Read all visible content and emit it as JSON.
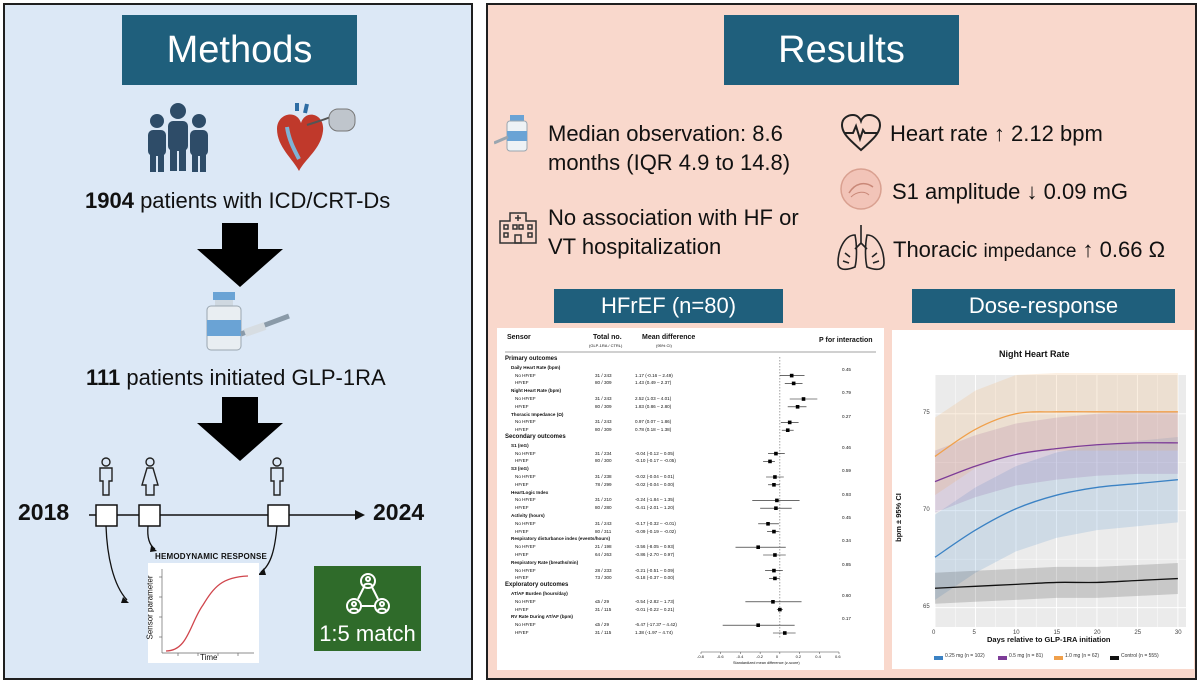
{
  "methods": {
    "title": "Methods",
    "patients_count": "1904",
    "patients_text": " patients with ICD/CRT-Ds",
    "initiated_count": "111",
    "initiated_text": " patients initiated GLP-1RA",
    "timeline_start": "2018",
    "timeline_end": "2024",
    "hemodynamic_label": "HEMODYNAMIC RESPONSE",
    "sensor_axis_label": "Sensor parameter",
    "time_axis_label": "Time",
    "match_label": "1:5 match",
    "colors": {
      "title_bg": "#1f5f7c",
      "match_bg": "#2f6b2a",
      "curve": "#d0454c"
    }
  },
  "results": {
    "title": "Results",
    "observation_line1": "Median observation: 8.6",
    "observation_line2": "months (IQR 4.9 to 14.8)",
    "hosp_line1": "No association with HF or",
    "hosp_line2": "VT hospitalization",
    "heart_rate": "Heart rate ↑ 2.12 bpm",
    "s1": "S1 amplitude ↓ 0.09 mG",
    "thoracic_label": "Thoracic ",
    "thoracic_small": "impedance",
    "thoracic_value": " ↑ 0.66 Ω",
    "hfref_header": "HFrEF (n=80)",
    "dose_header": "Dose-response"
  },
  "forest": {
    "col_sensor": "Sensor",
    "col_total": "Total no.",
    "col_total_sub": "(GLP-1RA / CTRL)",
    "col_md": "Mean difference",
    "col_md_sub": "(95% CI)",
    "col_p": "P for interaction",
    "axis_label": "Standardized mean difference (z-score)",
    "ticks": [
      "-0.8",
      "-0.6",
      "-0.4",
      "-0.2",
      "0",
      "0.2",
      "0.4",
      "0.6"
    ],
    "rows": [
      {
        "kind": "section",
        "label": "Primary outcomes"
      },
      {
        "kind": "group",
        "label": "Daily Heart Rate (bpm)",
        "p": "0.45"
      },
      {
        "kind": "sub",
        "label": "No HFrEF",
        "n": "31 / 243",
        "md": "1.17 (-0.16 – 2.49)",
        "est": 0.12,
        "lo": 0.0,
        "hi": 0.25
      },
      {
        "kind": "sub",
        "label": "HFrEF",
        "n": "80 / 309",
        "md": "1.43 (0.49 – 2.37)",
        "est": 0.14,
        "lo": 0.05,
        "hi": 0.23
      },
      {
        "kind": "group",
        "label": "Night Heart Rate (bpm)",
        "p": "0.79"
      },
      {
        "kind": "sub",
        "label": "No HFrEF",
        "n": "31 / 243",
        "md": "2.52 (1.03 – 4.01)",
        "est": 0.24,
        "lo": 0.1,
        "hi": 0.38
      },
      {
        "kind": "sub",
        "label": "HFrEF",
        "n": "80 / 309",
        "md": "1.83 (0.86 – 2.80)",
        "est": 0.18,
        "lo": 0.08,
        "hi": 0.27
      },
      {
        "kind": "group",
        "label": "Thoracic Impedance (Ω)",
        "p": "0.27"
      },
      {
        "kind": "sub",
        "label": "No HFrEF",
        "n": "31 / 243",
        "md": "0.97 (0.07 – 1.86)",
        "est": 0.1,
        "lo": 0.01,
        "hi": 0.19
      },
      {
        "kind": "sub",
        "label": "HFrEF",
        "n": "80 / 309",
        "md": "0.78 (0.18 – 1.38)",
        "est": 0.08,
        "lo": 0.02,
        "hi": 0.14
      },
      {
        "kind": "section",
        "label": "Secondary outcomes"
      },
      {
        "kind": "group",
        "label": "S1 (mG)",
        "p": "0.46"
      },
      {
        "kind": "sub",
        "label": "No HFrEF",
        "n": "31 / 234",
        "md": "-0.04 (-0.12 – 0.05)",
        "est": -0.04,
        "lo": -0.12,
        "hi": 0.05
      },
      {
        "kind": "sub",
        "label": "HFrEF",
        "n": "80 / 300",
        "md": "-0.10 (-0.17 – -0.05)",
        "est": -0.1,
        "lo": -0.17,
        "hi": -0.05
      },
      {
        "kind": "group",
        "label": "S3 (mG)",
        "p": "0.59"
      },
      {
        "kind": "sub",
        "label": "No HFrEF",
        "n": "31 / 238",
        "md": "-0.02 (-0.04 – 0.01)",
        "est": -0.05,
        "lo": -0.14,
        "hi": 0.04
      },
      {
        "kind": "sub",
        "label": "HFrEF",
        "n": "78 / 299",
        "md": "-0.02 (-0.04 – 0.00)",
        "est": -0.06,
        "lo": -0.12,
        "hi": 0.0
      },
      {
        "kind": "group",
        "label": "HeartLogic Index",
        "p": "0.93"
      },
      {
        "kind": "sub",
        "label": "No HFrEF",
        "n": "31 / 210",
        "md": "-0.24 (-1.84 – 1.35)",
        "est": -0.03,
        "lo": -0.28,
        "hi": 0.2
      },
      {
        "kind": "sub",
        "label": "HFrEF",
        "n": "80 / 280",
        "md": "-0.41 (-2.01 – 1.20)",
        "est": -0.04,
        "lo": -0.2,
        "hi": 0.12
      },
      {
        "kind": "group",
        "label": "Activity (hours)",
        "p": "0.45"
      },
      {
        "kind": "sub",
        "label": "No HFrEF",
        "n": "31 / 243",
        "md": "-0.17 (-0.32 – -0.01)",
        "est": -0.12,
        "lo": -0.22,
        "hi": -0.01
      },
      {
        "kind": "sub",
        "label": "HFrEF",
        "n": "80 / 311",
        "md": "-0.09 (-0.19 – -0.02)",
        "est": -0.06,
        "lo": -0.13,
        "hi": -0.01
      },
      {
        "kind": "group",
        "label": "Respiratory disturbance index (events/hours)",
        "p": "0.34"
      },
      {
        "kind": "sub",
        "label": "No HFrEF",
        "n": "21 / 198",
        "md": "-3.56 (-8.05 – 0.93)",
        "est": -0.22,
        "lo": -0.45,
        "hi": 0.06
      },
      {
        "kind": "sub",
        "label": "HFrEF",
        "n": "64 / 263",
        "md": "-0.86 (-2.70 – 0.97)",
        "est": -0.05,
        "lo": -0.17,
        "hi": 0.06
      },
      {
        "kind": "group",
        "label": "Respiratory Rate (breaths/min)",
        "p": "0.85"
      },
      {
        "kind": "sub",
        "label": "No HFrEF",
        "n": "28 / 233",
        "md": "-0.21 (-0.51 – 0.09)",
        "est": -0.06,
        "lo": -0.15,
        "hi": 0.03
      },
      {
        "kind": "sub",
        "label": "HFrEF",
        "n": "73 / 300",
        "md": "-0.18 (-0.37 – 0.00)",
        "est": -0.05,
        "lo": -0.11,
        "hi": 0.0
      },
      {
        "kind": "section",
        "label": "Exploratory outcomes"
      },
      {
        "kind": "group",
        "label": "AT/AF Burden (hours/day)",
        "p": "0.60"
      },
      {
        "kind": "sub",
        "label": "No HFrEF",
        "n": "≤5 / 29",
        "md": "-0.54 (-2.82 – 1.73)",
        "est": -0.07,
        "lo": -0.35,
        "hi": 0.22
      },
      {
        "kind": "sub",
        "label": "HFrEF",
        "n": "31 / 115",
        "md": "-0.01 (-0.22 – 0.21)",
        "est": 0.0,
        "lo": -0.03,
        "hi": 0.03
      },
      {
        "kind": "group",
        "label": "RV Rate During AT/AF (bpm)",
        "p": "0.17"
      },
      {
        "kind": "sub",
        "label": "No HFrEF",
        "n": "≤5 / 29",
        "md": "-6.47 (-17.37 – 4.42)",
        "est": -0.22,
        "lo": -0.58,
        "hi": 0.15
      },
      {
        "kind": "sub",
        "label": "HFrEF",
        "n": "31 / 115",
        "md": "1.38 (-1.97 – 4.74)",
        "est": 0.05,
        "lo": -0.07,
        "hi": 0.16
      }
    ]
  },
  "chart_data": {
    "type": "line",
    "title": "Night Heart Rate",
    "xlabel": "Days relative to GLP-1RA initiation",
    "ylabel": "bpm ± 95% CI",
    "xlim": [
      0,
      31
    ],
    "ylim": [
      64,
      77
    ],
    "x_ticks": [
      0,
      5,
      10,
      15,
      20,
      25,
      30
    ],
    "y_ticks": [
      65,
      70,
      75
    ],
    "grid": true,
    "legend_position": "bottom",
    "x": [
      0,
      5,
      10,
      15,
      20,
      25,
      30
    ],
    "series": [
      {
        "name": "0.25 mg (n = 102)",
        "color": "#3b82c4",
        "values": [
          67.6,
          69.0,
          70.1,
          70.8,
          71.2,
          71.4,
          71.6
        ]
      },
      {
        "name": "0.5 mg (n = 81)",
        "color": "#7d3c98",
        "values": [
          71.5,
          72.3,
          72.9,
          73.2,
          73.4,
          73.5,
          73.5
        ]
      },
      {
        "name": "1.0 mg (n = 62)",
        "color": "#f0a04b",
        "values": [
          72.8,
          74.2,
          75.0,
          75.1,
          75.1,
          75.1,
          75.1
        ]
      },
      {
        "name": "Control (n = 555)",
        "color": "#111111",
        "values": [
          66.0,
          66.1,
          66.2,
          66.3,
          66.3,
          66.4,
          66.5
        ]
      }
    ]
  }
}
